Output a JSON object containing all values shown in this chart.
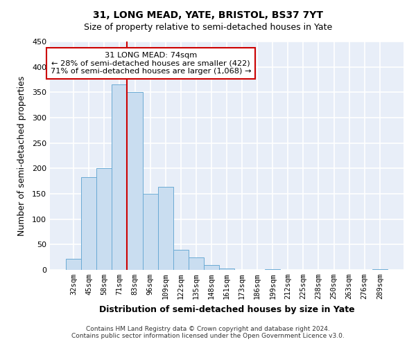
{
  "title": "31, LONG MEAD, YATE, BRISTOL, BS37 7YT",
  "subtitle": "Size of property relative to semi-detached houses in Yate",
  "xlabel": "Distribution of semi-detached houses by size in Yate",
  "ylabel": "Number of semi-detached properties",
  "bar_labels": [
    "32sqm",
    "45sqm",
    "58sqm",
    "71sqm",
    "83sqm",
    "96sqm",
    "109sqm",
    "122sqm",
    "135sqm",
    "148sqm",
    "161sqm",
    "173sqm",
    "186sqm",
    "199sqm",
    "212sqm",
    "225sqm",
    "238sqm",
    "250sqm",
    "263sqm",
    "276sqm",
    "289sqm"
  ],
  "bar_values": [
    22,
    183,
    201,
    365,
    351,
    150,
    163,
    40,
    25,
    9,
    3,
    0,
    0,
    1,
    0,
    0,
    0,
    0,
    0,
    0,
    2
  ],
  "bar_color": "#c9ddf0",
  "bar_edge_color": "#6aaad4",
  "property_line_color": "#cc0000",
  "annotation_title": "31 LONG MEAD: 74sqm",
  "annotation_line1": "← 28% of semi-detached houses are smaller (422)",
  "annotation_line2": "71% of semi-detached houses are larger (1,068) →",
  "annotation_box_color": "#ffffff",
  "annotation_box_edge": "#cc0000",
  "ylim": [
    0,
    450
  ],
  "plot_bg_color": "#e8eef8",
  "figure_bg_color": "#ffffff",
  "grid_color": "#ffffff",
  "footer": "Contains HM Land Registry data © Crown copyright and database right 2024.\nContains public sector information licensed under the Open Government Licence v3.0."
}
